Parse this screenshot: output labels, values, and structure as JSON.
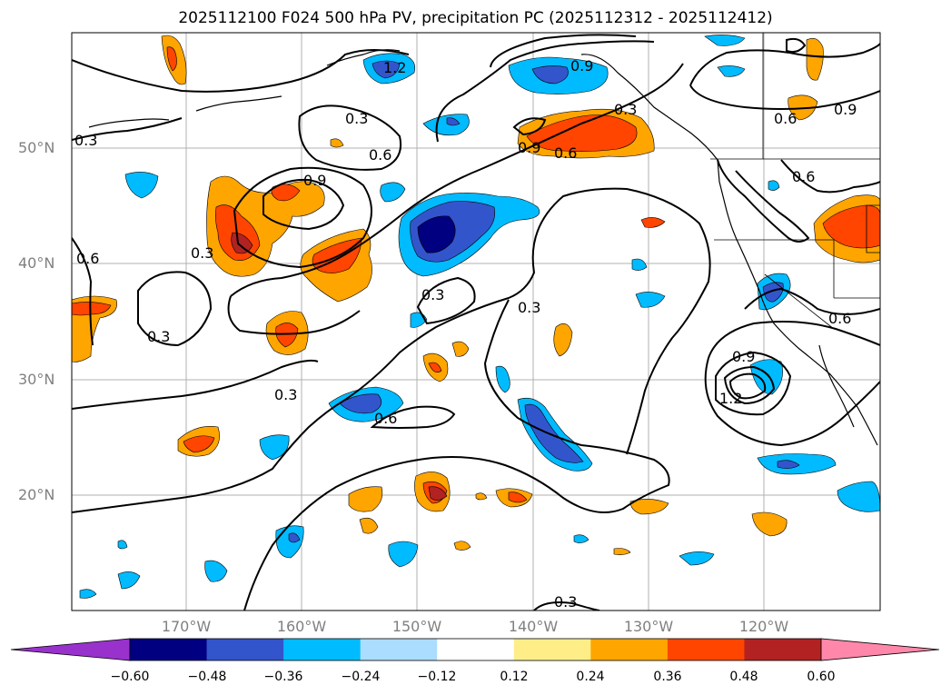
{
  "title": "2025112100 F024 500 hPa PV, precipitation PC (2025112312 - 2025112412)",
  "lat_labels": [
    "50°N",
    "40°N",
    "30°N",
    "20°N"
  ],
  "lon_labels": [
    "170°W",
    "160°W",
    "150°W",
    "140°W",
    "130°W",
    "120°W"
  ],
  "colorbar": {
    "colors": [
      "#9932cc",
      "#000080",
      "#3355cc",
      "#00bbff",
      "#aaddff",
      "#ffffff",
      "#ffee88",
      "#ffa500",
      "#ff4500",
      "#b22222",
      "#ff88aa"
    ],
    "tick_labels": [
      "−0.60",
      "−0.48",
      "−0.36",
      "−0.24",
      "−0.12",
      "0.12",
      "0.24",
      "0.36",
      "0.48",
      "0.60"
    ]
  },
  "contour_labels": [
    "0.3",
    "0.6",
    "0.9",
    "1.2"
  ]
}
